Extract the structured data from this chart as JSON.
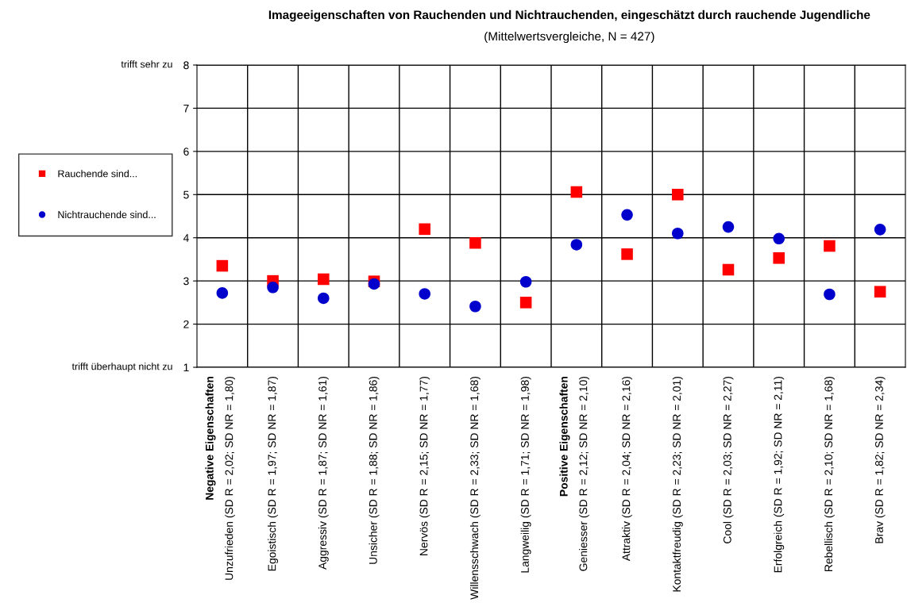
{
  "chart_data": {
    "type": "scatter",
    "title": "Imageeigenschaften von Rauchenden und Nichtrauchenden, eingeschätzt durch rauchende Jugendliche",
    "subtitle": "(Mittelwertsvergleiche, N = 427)",
    "categories": [
      "Negative Eigenschaften\nUnzufrieden (SD R = 2,02; SD NR = 1,80)",
      "Egoistisch (SD R = 1,97; SD NR = 1,87)",
      "Aggressiv (SD R = 1,87; SD NR = 1,61)",
      "Unsicher (SD R = 1,88; SD NR = 1,86)",
      "Nervös (SD R = 2,15; SD NR = 1,77)",
      "Willensschwach (SD R = 2,33; SD NR = 1,68)",
      "Langweilig (SD R = 1,71; SD NR = 1,98)",
      "Positive Eigenschaften\nGeniesser (SD R = 2,12; SD NR = 2,10)",
      "Attraktiv (SD R = 2,04; SD NR = 2,16)",
      "Kontaktfreudig (SD R = 2,23; SD NR = 2,01)",
      "Cool (SD R = 2,03; SD NR = 2,27)",
      "Erfolgreich (SD R = 1,92; SD NR = 2,11)",
      "Rebellisch (SD R = 2,10; SD NR = 1,68)",
      "Brav (SD R = 1,82; SD NR = 2,34)"
    ],
    "series": [
      {
        "name": "Rauchende sind...",
        "color": "#ff0000",
        "marker": "square",
        "values": [
          3.35,
          3.0,
          3.04,
          2.99,
          4.2,
          3.88,
          2.5,
          5.06,
          3.62,
          5.0,
          3.26,
          3.53,
          3.81,
          2.75
        ]
      },
      {
        "name": "Nichtrauchende sind...",
        "color": "#0000cc",
        "marker": "circle",
        "values": [
          2.72,
          2.85,
          2.6,
          2.93,
          2.7,
          2.41,
          2.98,
          3.84,
          4.53,
          4.1,
          4.25,
          3.98,
          2.69,
          4.19
        ]
      }
    ],
    "ylim": [
      1,
      8
    ],
    "yticks": [
      1,
      2,
      3,
      4,
      5,
      6,
      7,
      8
    ],
    "grid": true,
    "legend": "left",
    "annotations": [
      "trifft sehr zu",
      "trifft überhaupt nicht zu"
    ]
  }
}
